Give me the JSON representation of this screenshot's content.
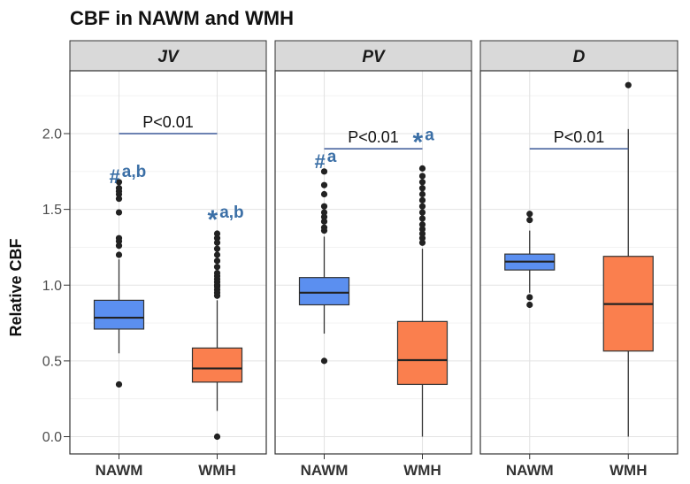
{
  "chart_data": {
    "type": "boxplot",
    "title": "CBF in NAWM and WMH",
    "ylabel": "Relative CBF",
    "xlabel": "",
    "ylim": [
      -0.1,
      2.45
    ],
    "yticks": [
      "0.0",
      "0.5",
      "1.0",
      "1.5",
      "2.0"
    ],
    "categories": [
      "NAWM",
      "WMH"
    ],
    "colors": {
      "NAWM": "#5b8ff0",
      "WMH": "#fa7f4e"
    },
    "panels": [
      {
        "name": "JV",
        "significance": {
          "label": "P<0.01",
          "y": 2.0
        },
        "boxes": [
          {
            "group": "NAWM",
            "q1": 0.71,
            "median": 0.785,
            "q3": 0.9,
            "whisker_low": 0.55,
            "whisker_high": 1.17,
            "outliers": [
              0.345,
              1.2,
              1.26,
              1.29,
              1.31,
              1.48,
              1.57,
              1.6,
              1.62,
              1.64,
              1.68
            ],
            "annotation": {
              "symbol": "#",
              "text": "a,b",
              "y": 1.72
            }
          },
          {
            "group": "WMH",
            "q1": 0.36,
            "median": 0.45,
            "q3": 0.585,
            "whisker_low": 0.17,
            "whisker_high": 0.9,
            "outliers": [
              0.0,
              0.93,
              0.95,
              0.97,
              0.99,
              1.0,
              1.02,
              1.04,
              1.06,
              1.08,
              1.12,
              1.16,
              1.2,
              1.24,
              1.28,
              1.31,
              1.34
            ],
            "annotation": {
              "symbol": "*",
              "text": "a,b",
              "y": 1.48
            }
          }
        ]
      },
      {
        "name": "PV",
        "significance": {
          "label": "P<0.01",
          "y": 1.9
        },
        "boxes": [
          {
            "group": "NAWM",
            "q1": 0.87,
            "median": 0.95,
            "q3": 1.05,
            "whisker_low": 0.68,
            "whisker_high": 1.32,
            "outliers": [
              0.5,
              1.36,
              1.38,
              1.42,
              1.45,
              1.48,
              1.52,
              1.6,
              1.66,
              1.75
            ],
            "annotation": {
              "symbol": "#",
              "text": "a",
              "y": 1.82
            }
          },
          {
            "group": "WMH",
            "q1": 0.345,
            "median": 0.505,
            "q3": 0.76,
            "whisker_low": 0.0,
            "whisker_high": 1.24,
            "outliers": [
              1.28,
              1.31,
              1.34,
              1.37,
              1.4,
              1.44,
              1.48,
              1.52,
              1.56,
              1.6,
              1.64,
              1.68,
              1.72,
              1.77
            ],
            "annotation": {
              "symbol": "*",
              "text": "a",
              "y": 1.99
            }
          }
        ]
      },
      {
        "name": "D",
        "significance": {
          "label": "P<0.01",
          "y": 1.9
        },
        "boxes": [
          {
            "group": "NAWM",
            "q1": 1.1,
            "median": 1.155,
            "q3": 1.205,
            "whisker_low": 0.95,
            "whisker_high": 1.36,
            "outliers": [
              0.87,
              0.92,
              1.43,
              1.47
            ],
            "annotation": null
          },
          {
            "group": "WMH",
            "q1": 0.565,
            "median": 0.875,
            "q3": 1.19,
            "whisker_low": 0.0,
            "whisker_high": 2.03,
            "outliers": [
              2.32
            ],
            "annotation": null
          }
        ]
      }
    ]
  }
}
